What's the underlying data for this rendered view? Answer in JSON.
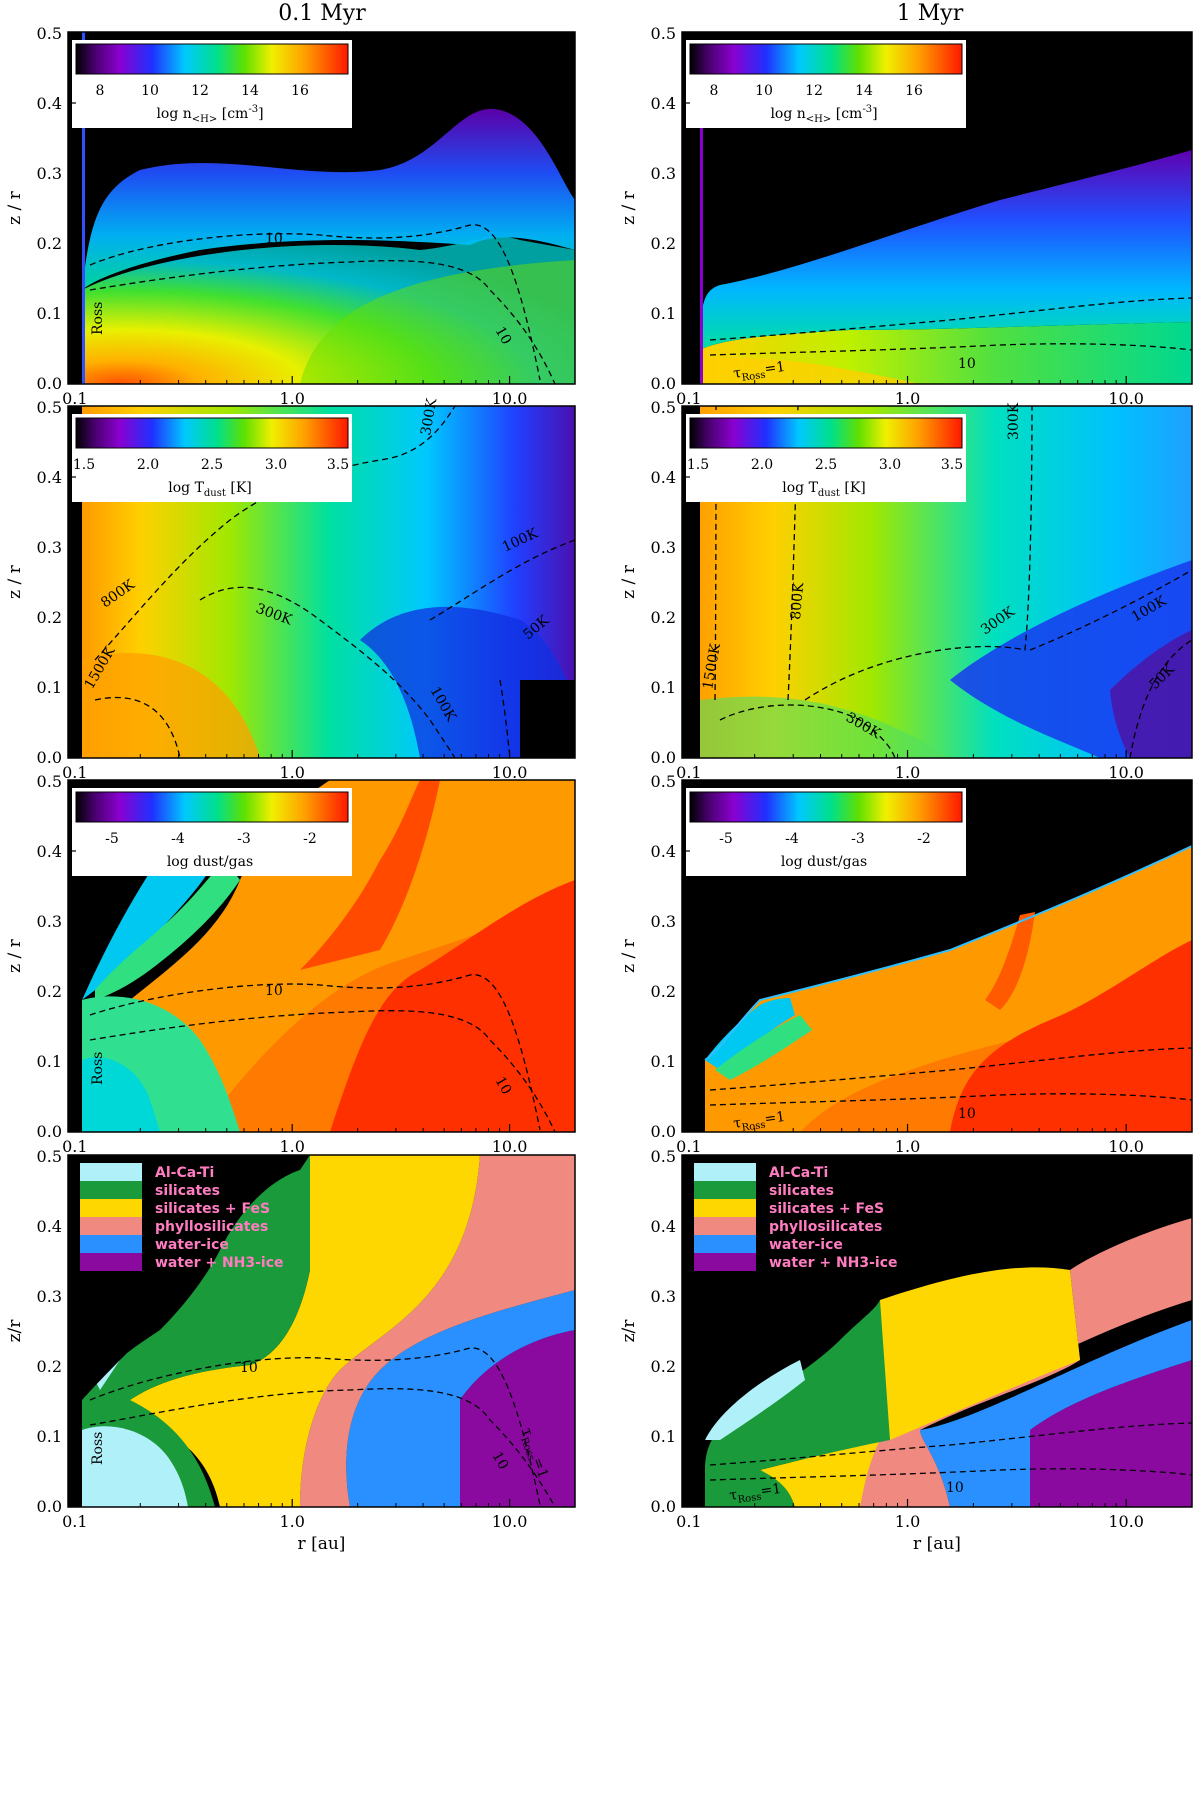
{
  "columns": [
    {
      "title": "0.1 Myr"
    },
    {
      "title": "1 Myr"
    }
  ],
  "chart_data": [
    {
      "type": "heatmap",
      "column": "0.1 Myr",
      "ylabel": "z / r",
      "xticks": [
        "0.1",
        "1.0",
        "10.0"
      ],
      "yticks": [
        "0.0",
        "0.1",
        "0.2",
        "0.3",
        "0.4",
        "0.5"
      ],
      "xlim": [
        0.1,
        20
      ],
      "xscale": "log",
      "ylim": [
        0,
        0.5
      ],
      "colorbar": {
        "label_main": "log n",
        "label_sub": "<H>",
        "label_unit": " [cm",
        "label_sup": "-3",
        "label_end": "]",
        "ticks": [
          "8",
          "10",
          "12",
          "14",
          "16"
        ],
        "range": [
          7,
          18
        ]
      },
      "contours": [
        {
          "label": "10"
        },
        {
          "label": "10"
        },
        {
          "label": "Ross"
        }
      ],
      "colors": {
        "map": [
          "#000000",
          "#6a00a8",
          "#2a2aff",
          "#00c8ff",
          "#00e08a",
          "#7de000",
          "#f0f000",
          "#ffa000",
          "#ff3000"
        ]
      }
    },
    {
      "type": "heatmap",
      "column": "1 Myr",
      "ylabel": "z / r",
      "xticks": [
        "0.1",
        "1.0",
        "10.0"
      ],
      "yticks": [
        "0.0",
        "0.1",
        "0.2",
        "0.3",
        "0.4",
        "0.5"
      ],
      "xlim": [
        0.1,
        20
      ],
      "xscale": "log",
      "ylim": [
        0,
        0.5
      ],
      "colorbar": {
        "label_main": "log n",
        "label_sub": "<H>",
        "label_unit": " [cm",
        "label_sup": "-3",
        "label_end": "]",
        "ticks": [
          "8",
          "10",
          "12",
          "14",
          "16"
        ],
        "range": [
          7,
          18
        ]
      },
      "contours": [
        {
          "label": "10"
        },
        {
          "label": "τ",
          "sub": "Ross",
          "rest": "=1"
        }
      ]
    },
    {
      "type": "heatmap",
      "column": "0.1 Myr",
      "ylabel": "z / r",
      "xticks": [
        "0.1",
        "1.0",
        "10.0"
      ],
      "yticks": [
        "0.0",
        "0.1",
        "0.2",
        "0.3",
        "0.4",
        "0.5"
      ],
      "colorbar": {
        "label_main": "log T",
        "label_sub": "dust",
        "label_unit": " [K]",
        "label_sup": "",
        "label_end": "",
        "ticks": [
          "1.5",
          "2.0",
          "2.5",
          "3.0",
          "3.5"
        ],
        "range": [
          1.5,
          3.6
        ]
      },
      "contours": [
        {
          "label": "300K"
        },
        {
          "label": "800K"
        },
        {
          "label": "1500K"
        },
        {
          "label": "300K"
        },
        {
          "label": "100K"
        },
        {
          "label": "100K"
        },
        {
          "label": "50K"
        }
      ]
    },
    {
      "type": "heatmap",
      "column": "1 Myr",
      "ylabel": "z / r",
      "xticks": [
        "0.1",
        "1.0",
        "10.0"
      ],
      "yticks": [
        "0.0",
        "0.1",
        "0.2",
        "0.3",
        "0.4",
        "0.5"
      ],
      "colorbar": {
        "label_main": "log T",
        "label_sub": "dust",
        "label_unit": " [K]",
        "label_sup": "",
        "label_end": "",
        "ticks": [
          "1.5",
          "2.0",
          "2.5",
          "3.0",
          "3.5"
        ],
        "range": [
          1.5,
          3.6
        ]
      },
      "contours": [
        {
          "label": "300K"
        },
        {
          "label": "800K"
        },
        {
          "label": "1500K"
        },
        {
          "label": "300K"
        },
        {
          "label": "300K"
        },
        {
          "label": "100K"
        },
        {
          "label": "50K"
        }
      ]
    },
    {
      "type": "heatmap",
      "column": "0.1 Myr",
      "ylabel": "z / r",
      "xticks": [
        "0.1",
        "1.0",
        "10.0"
      ],
      "yticks": [
        "0.0",
        "0.1",
        "0.2",
        "0.3",
        "0.4",
        "0.5"
      ],
      "colorbar": {
        "label_main": "log dust/gas",
        "label_sub": "",
        "label_unit": "",
        "label_sup": "",
        "label_end": "",
        "ticks": [
          "-5",
          "-4",
          "-3",
          "-2"
        ],
        "range": [
          -5.7,
          -1.6
        ]
      },
      "contours": [
        {
          "label": "10"
        },
        {
          "label": "10"
        },
        {
          "label": "Ross"
        }
      ]
    },
    {
      "type": "heatmap",
      "column": "1 Myr",
      "ylabel": "z / r",
      "xticks": [
        "0.1",
        "1.0",
        "10.0"
      ],
      "yticks": [
        "0.0",
        "0.1",
        "0.2",
        "0.3",
        "0.4",
        "0.5"
      ],
      "colorbar": {
        "label_main": "log dust/gas",
        "label_sub": "",
        "label_unit": "",
        "label_sup": "",
        "label_end": "",
        "ticks": [
          "-5",
          "-4",
          "-3",
          "-2"
        ],
        "range": [
          -5.7,
          -1.6
        ]
      },
      "contours": [
        {
          "label": "10"
        },
        {
          "label": "τ",
          "sub": "Ross",
          "rest": "=1"
        }
      ]
    },
    {
      "type": "heatmap",
      "column": "0.1 Myr",
      "ylabel": "z/r",
      "xlabel": "r [au]",
      "xticks": [
        "0.1",
        "1.0",
        "10.0"
      ],
      "yticks": [
        "0.0",
        "0.1",
        "0.2",
        "0.3",
        "0.4",
        "0.5"
      ],
      "legend": [
        {
          "name": "Al-Ca-Ti",
          "color": "#b0f0f8"
        },
        {
          "name": "silicates",
          "color": "#1a9a3a"
        },
        {
          "name": "silicates + FeS",
          "color": "#ffd700"
        },
        {
          "name": "phyllosilicates",
          "color": "#f08a80"
        },
        {
          "name": "water-ice",
          "color": "#2a90ff"
        },
        {
          "name": "water + NH3-ice",
          "color": "#8a0aa0"
        }
      ],
      "contours": [
        {
          "label": "10"
        },
        {
          "label": "10"
        },
        {
          "label": "Ross"
        },
        {
          "label": "τ",
          "sub": "Ross",
          "rest": "=1"
        }
      ]
    },
    {
      "type": "heatmap",
      "column": "1 Myr",
      "ylabel": "z/r",
      "xlabel": "r [au]",
      "xticks": [
        "0.1",
        "1.0",
        "10.0"
      ],
      "yticks": [
        "0.0",
        "0.1",
        "0.2",
        "0.3",
        "0.4",
        "0.5"
      ],
      "legend": [
        {
          "name": "Al-Ca-Ti",
          "color": "#b0f0f8"
        },
        {
          "name": "silicates",
          "color": "#1a9a3a"
        },
        {
          "name": "silicates + FeS",
          "color": "#ffd700"
        },
        {
          "name": "phyllosilicates",
          "color": "#f08a80"
        },
        {
          "name": "water-ice",
          "color": "#2a90ff"
        },
        {
          "name": "water + NH3-ice",
          "color": "#8a0aa0"
        }
      ],
      "contours": [
        {
          "label": "10"
        },
        {
          "label": "τ",
          "sub": "Ross",
          "rest": "=1"
        }
      ]
    }
  ]
}
